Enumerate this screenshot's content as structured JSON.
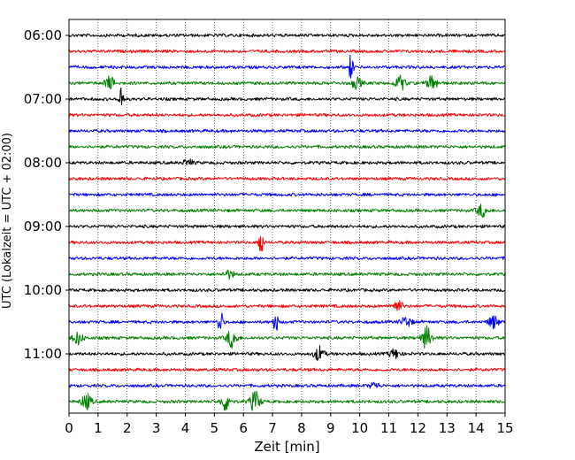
{
  "chart_data": {
    "type": "line",
    "title": "",
    "xlabel": "Zeit  [min]",
    "ylabel": "UTC (Lokalzeit = UTC + 02:00)",
    "xlim": [
      0,
      15
    ],
    "x_ticks": [
      "0",
      "1",
      "2",
      "3",
      "4",
      "5",
      "6",
      "7",
      "8",
      "9",
      "10",
      "11",
      "12",
      "13",
      "14",
      "15"
    ],
    "y_tick_labels": [
      "06:00",
      "07:00",
      "08:00",
      "09:00",
      "10:00",
      "11:00"
    ],
    "grid": "vertical dotted",
    "trace_minutes": 15,
    "series_colors": [
      "#000000",
      "#ff0000",
      "#0000ff",
      "#008000"
    ],
    "series": [
      {
        "start": "06:00",
        "color": "#000000",
        "events": []
      },
      {
        "start": "06:15",
        "color": "#ff0000",
        "events": []
      },
      {
        "start": "06:30",
        "color": "#0000ff",
        "events": [
          {
            "x": 9.7,
            "amp": 0.9
          }
        ]
      },
      {
        "start": "06:45",
        "color": "#008000",
        "events": [
          {
            "x": 1.4,
            "amp": 0.4
          },
          {
            "x": 9.9,
            "amp": 0.35
          },
          {
            "x": 11.4,
            "amp": 0.45
          },
          {
            "x": 12.5,
            "amp": 0.5
          }
        ]
      },
      {
        "start": "07:00",
        "color": "#000000",
        "events": [
          {
            "x": 1.8,
            "amp": 1.0
          }
        ]
      },
      {
        "start": "07:15",
        "color": "#ff0000",
        "events": []
      },
      {
        "start": "07:30",
        "color": "#0000ff",
        "events": []
      },
      {
        "start": "07:45",
        "color": "#008000",
        "events": []
      },
      {
        "start": "08:00",
        "color": "#000000",
        "events": [
          {
            "x": 4.1,
            "amp": 0.2
          }
        ]
      },
      {
        "start": "08:15",
        "color": "#ff0000",
        "events": []
      },
      {
        "start": "08:30",
        "color": "#0000ff",
        "events": []
      },
      {
        "start": "08:45",
        "color": "#008000",
        "events": [
          {
            "x": 14.2,
            "amp": 0.4
          }
        ]
      },
      {
        "start": "09:00",
        "color": "#000000",
        "events": []
      },
      {
        "start": "09:15",
        "color": "#ff0000",
        "events": [
          {
            "x": 6.6,
            "amp": 1.0
          }
        ]
      },
      {
        "start": "09:30",
        "color": "#0000ff",
        "events": []
      },
      {
        "start": "09:45",
        "color": "#008000",
        "events": [
          {
            "x": 5.5,
            "amp": 0.25
          }
        ]
      },
      {
        "start": "10:00",
        "color": "#000000",
        "events": []
      },
      {
        "start": "10:15",
        "color": "#ff0000",
        "events": [
          {
            "x": 11.3,
            "amp": 0.35
          }
        ]
      },
      {
        "start": "10:30",
        "color": "#0000ff",
        "events": [
          {
            "x": 5.2,
            "amp": 1.1
          },
          {
            "x": 7.1,
            "amp": 0.9
          },
          {
            "x": 11.6,
            "amp": 0.35
          },
          {
            "x": 14.6,
            "amp": 0.4
          }
        ]
      },
      {
        "start": "10:45",
        "color": "#008000",
        "events": [
          {
            "x": 0.3,
            "amp": 0.4
          },
          {
            "x": 5.6,
            "amp": 0.6
          },
          {
            "x": 12.3,
            "amp": 0.7
          }
        ]
      },
      {
        "start": "11:00",
        "color": "#000000",
        "events": [
          {
            "x": 8.6,
            "amp": 0.45
          },
          {
            "x": 11.2,
            "amp": 0.3
          }
        ]
      },
      {
        "start": "11:15",
        "color": "#ff0000",
        "events": []
      },
      {
        "start": "11:30",
        "color": "#0000ff",
        "events": [
          {
            "x": 10.5,
            "amp": 0.2
          }
        ]
      },
      {
        "start": "11:45",
        "color": "#008000",
        "events": [
          {
            "x": 0.6,
            "amp": 0.5
          },
          {
            "x": 5.4,
            "amp": 0.55
          },
          {
            "x": 6.4,
            "amp": 0.65
          }
        ]
      }
    ]
  }
}
